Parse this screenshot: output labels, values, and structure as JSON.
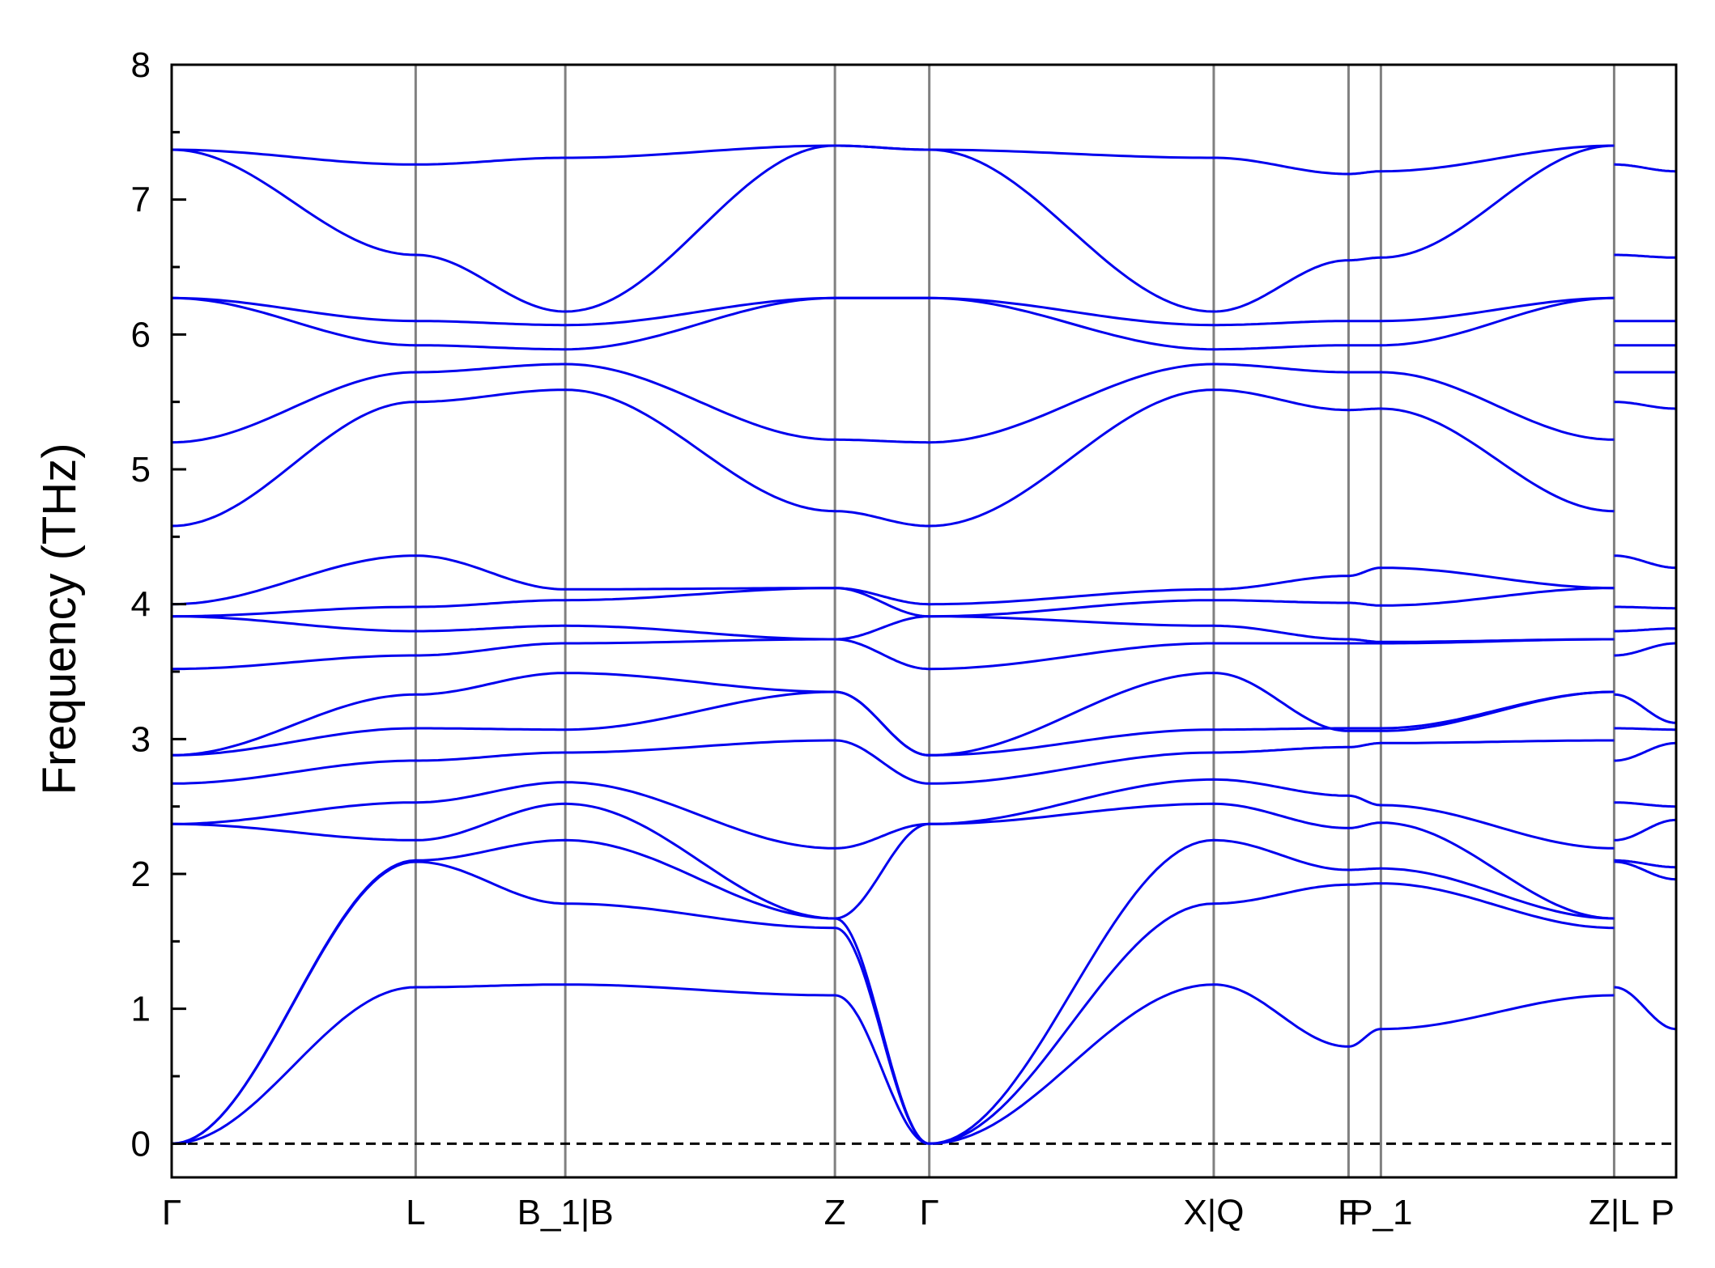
{
  "chart_data": {
    "type": "line",
    "title": "",
    "xlabel": "",
    "ylabel": "Frequency (THz)",
    "ylim": [
      -0.25,
      8
    ],
    "yticks": [
      0,
      1,
      2,
      3,
      4,
      5,
      6,
      7,
      8
    ],
    "grid": false,
    "legend": "none",
    "zero_line": {
      "y": 0,
      "style": "dashed",
      "color": "#000000"
    },
    "colors": {
      "bands": "#0000ee",
      "vlines": "#808080",
      "axis": "#000000"
    },
    "segments": [
      {
        "labels": [
          "Γ",
          "L",
          "B_1|B",
          "Z",
          "Γ",
          "X|Q",
          "F",
          "P_1",
          "Z|L"
        ],
        "x": [
          0,
          0.905,
          1.46,
          2.46,
          2.81,
          3.865,
          4.365,
          4.485,
          5.35
        ]
      },
      {
        "labels": [
          "Z|L",
          "P"
        ],
        "x": [
          5.35,
          5.58
        ]
      }
    ],
    "x_tick_labels": [
      "Γ",
      "L",
      "B_1|B",
      "Z",
      "Γ",
      "X|Q",
      "F",
      "P_1",
      "Z|L",
      "P"
    ],
    "vline_positions": [
      0.905,
      1.46,
      2.46,
      2.81,
      3.865,
      4.365,
      4.485,
      5.35
    ],
    "bands_at_high_symmetry_points": [
      [
        0,
        1.16,
        1.18,
        1.1,
        0,
        1.18,
        0.72,
        0.85,
        1.1,
        1.16,
        0.85
      ],
      [
        0,
        2.09,
        1.78,
        1.6,
        0,
        1.78,
        1.92,
        1.93,
        1.6,
        2.09,
        1.96
      ],
      [
        0,
        2.1,
        2.25,
        1.67,
        0,
        2.25,
        2.03,
        2.04,
        1.67,
        2.1,
        2.05
      ],
      [
        2.37,
        2.25,
        2.52,
        1.67,
        2.37,
        2.52,
        2.34,
        2.38,
        1.67,
        2.25,
        2.4
      ],
      [
        2.37,
        2.53,
        2.68,
        2.19,
        2.37,
        2.7,
        2.58,
        2.51,
        2.19,
        2.53,
        2.5
      ],
      [
        2.67,
        2.84,
        2.9,
        2.99,
        2.67,
        2.9,
        2.94,
        2.97,
        2.99,
        2.84,
        2.97
      ],
      [
        2.88,
        3.08,
        3.07,
        3.35,
        2.88,
        3.07,
        3.08,
        3.08,
        3.35,
        3.08,
        3.07
      ],
      [
        2.88,
        3.33,
        3.49,
        3.35,
        2.88,
        3.49,
        3.06,
        3.06,
        3.35,
        3.33,
        3.12
      ],
      [
        3.52,
        3.62,
        3.71,
        3.74,
        3.52,
        3.71,
        3.71,
        3.71,
        3.74,
        3.62,
        3.71
      ],
      [
        3.91,
        3.8,
        3.84,
        3.74,
        3.91,
        3.84,
        3.74,
        3.72,
        3.74,
        3.8,
        3.82
      ],
      [
        3.91,
        3.98,
        4.03,
        4.12,
        3.91,
        4.03,
        4.01,
        3.99,
        4.12,
        3.98,
        3.97
      ],
      [
        4.0,
        4.36,
        4.11,
        4.12,
        4.0,
        4.11,
        4.21,
        4.27,
        4.12,
        4.36,
        4.27
      ],
      [
        4.58,
        5.5,
        5.59,
        4.69,
        4.58,
        5.59,
        5.44,
        5.45,
        4.69,
        5.5,
        5.45
      ],
      [
        5.2,
        5.72,
        5.78,
        5.22,
        5.2,
        5.78,
        5.72,
        5.72,
        5.22,
        5.72,
        5.72
      ],
      [
        6.27,
        5.92,
        5.89,
        6.27,
        6.27,
        5.89,
        5.92,
        5.92,
        6.27,
        5.92,
        5.92
      ],
      [
        6.27,
        6.1,
        6.07,
        6.27,
        6.27,
        6.07,
        6.1,
        6.1,
        6.27,
        6.1,
        6.1
      ],
      [
        7.37,
        6.59,
        6.17,
        7.4,
        7.37,
        6.17,
        6.55,
        6.57,
        7.4,
        6.59,
        6.57
      ],
      [
        7.37,
        7.26,
        7.31,
        7.4,
        7.37,
        7.31,
        7.19,
        7.21,
        7.4,
        7.26,
        7.21
      ]
    ]
  }
}
